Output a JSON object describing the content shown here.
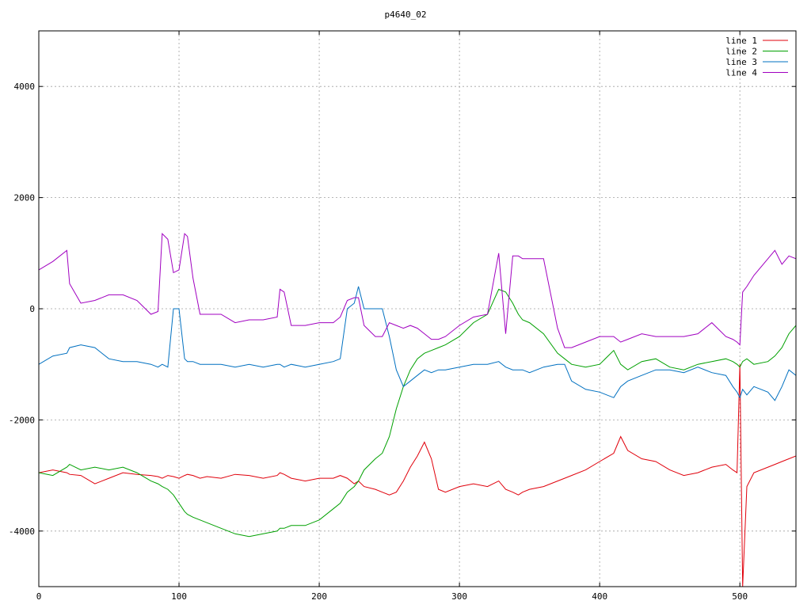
{
  "chart_data": {
    "type": "line",
    "title": "p4640_02",
    "xlabel": "",
    "ylabel": "",
    "xlim": [
      0,
      540
    ],
    "ylim": [
      -5000,
      5000
    ],
    "x_ticks": [
      0,
      100,
      200,
      300,
      400,
      500
    ],
    "y_ticks": [
      -4000,
      -2000,
      0,
      2000,
      4000
    ],
    "grid": true,
    "legend_position": "top-right",
    "x": [
      0,
      10,
      20,
      22,
      30,
      40,
      50,
      60,
      70,
      80,
      85,
      88,
      92,
      96,
      100,
      104,
      106,
      110,
      115,
      120,
      130,
      140,
      150,
      160,
      170,
      172,
      175,
      180,
      190,
      200,
      210,
      215,
      220,
      225,
      228,
      232,
      240,
      245,
      250,
      255,
      260,
      265,
      270,
      275,
      280,
      285,
      290,
      300,
      310,
      320,
      328,
      333,
      338,
      342,
      345,
      350,
      360,
      370,
      375,
      380,
      390,
      400,
      410,
      415,
      420,
      430,
      440,
      450,
      460,
      470,
      480,
      490,
      495,
      498,
      500,
      502,
      505,
      510,
      520,
      525,
      530,
      535,
      540
    ],
    "series": [
      {
        "name": "line 1",
        "color": "#e0000b",
        "values": [
          -2950,
          -2900,
          -2950,
          -2980,
          -3000,
          -3150,
          -3050,
          -2950,
          -2980,
          -3000,
          -3020,
          -3050,
          -3000,
          -3020,
          -3050,
          -3000,
          -2980,
          -3000,
          -3050,
          -3020,
          -3050,
          -2980,
          -3000,
          -3050,
          -3000,
          -2950,
          -2980,
          -3050,
          -3100,
          -3050,
          -3050,
          -3000,
          -3050,
          -3150,
          -3100,
          -3200,
          -3250,
          -3300,
          -3350,
          -3300,
          -3100,
          -2850,
          -2650,
          -2400,
          -2700,
          -3250,
          -3300,
          -3200,
          -3150,
          -3200,
          -3100,
          -3250,
          -3300,
          -3350,
          -3300,
          -3250,
          -3200,
          -3100,
          -3050,
          -3000,
          -2900,
          -2750,
          -2600,
          -2300,
          -2550,
          -2700,
          -2750,
          -2900,
          -3000,
          -2950,
          -2850,
          -2800,
          -2900,
          -2950,
          -1000,
          -5000,
          -3200,
          -2950,
          -2850,
          -2800,
          -2750,
          -2700,
          -2650
        ]
      },
      {
        "name": "line 2",
        "color": "#00a000",
        "values": [
          -2950,
          -3000,
          -2850,
          -2800,
          -2900,
          -2850,
          -2900,
          -2850,
          -2950,
          -3100,
          -3150,
          -3200,
          -3250,
          -3350,
          -3500,
          -3650,
          -3700,
          -3750,
          -3800,
          -3850,
          -3950,
          -4050,
          -4100,
          -4050,
          -4000,
          -3950,
          -3950,
          -3900,
          -3900,
          -3800,
          -3600,
          -3500,
          -3300,
          -3200,
          -3100,
          -2900,
          -2700,
          -2600,
          -2300,
          -1800,
          -1400,
          -1100,
          -900,
          -800,
          -750,
          -700,
          -650,
          -500,
          -250,
          -100,
          350,
          300,
          100,
          -100,
          -200,
          -250,
          -450,
          -800,
          -900,
          -1000,
          -1050,
          -1000,
          -750,
          -1000,
          -1100,
          -950,
          -900,
          -1050,
          -1100,
          -1000,
          -950,
          -900,
          -950,
          -1000,
          -1050,
          -950,
          -900,
          -1000,
          -950,
          -850,
          -700,
          -450,
          -300
        ]
      },
      {
        "name": "line 3",
        "color": "#0070c0",
        "values": [
          -1000,
          -850,
          -800,
          -700,
          -650,
          -700,
          -900,
          -950,
          -950,
          -1000,
          -1050,
          -1000,
          -1050,
          0,
          0,
          -900,
          -950,
          -950,
          -1000,
          -1000,
          -1000,
          -1050,
          -1000,
          -1050,
          -1000,
          -1000,
          -1050,
          -1000,
          -1050,
          -1000,
          -950,
          -900,
          0,
          100,
          400,
          0,
          0,
          0,
          -500,
          -1100,
          -1400,
          -1300,
          -1200,
          -1100,
          -1150,
          -1100,
          -1100,
          -1050,
          -1000,
          -1000,
          -950,
          -1050,
          -1100,
          -1100,
          -1100,
          -1150,
          -1050,
          -1000,
          -1000,
          -1300,
          -1450,
          -1500,
          -1600,
          -1400,
          -1300,
          -1200,
          -1100,
          -1100,
          -1150,
          -1050,
          -1150,
          -1200,
          -1400,
          -1500,
          -1600,
          -1450,
          -1550,
          -1400,
          -1500,
          -1650,
          -1400,
          -1100,
          -1200
        ]
      },
      {
        "name": "line 4",
        "color": "#a000c0",
        "values": [
          700,
          850,
          1050,
          450,
          100,
          150,
          250,
          250,
          150,
          -100,
          -50,
          1350,
          1250,
          650,
          700,
          1350,
          1300,
          550,
          -100,
          -100,
          -100,
          -250,
          -200,
          -200,
          -150,
          350,
          300,
          -300,
          -300,
          -250,
          -250,
          -150,
          150,
          200,
          200,
          -300,
          -500,
          -500,
          -250,
          -300,
          -350,
          -300,
          -350,
          -450,
          -550,
          -550,
          -500,
          -300,
          -150,
          -100,
          1000,
          -450,
          950,
          950,
          900,
          900,
          900,
          -350,
          -700,
          -700,
          -600,
          -500,
          -500,
          -600,
          -550,
          -450,
          -500,
          -500,
          -500,
          -450,
          -250,
          -500,
          -550,
          -600,
          -650,
          300,
          400,
          600,
          900,
          1050,
          800,
          950,
          900
        ]
      }
    ]
  }
}
